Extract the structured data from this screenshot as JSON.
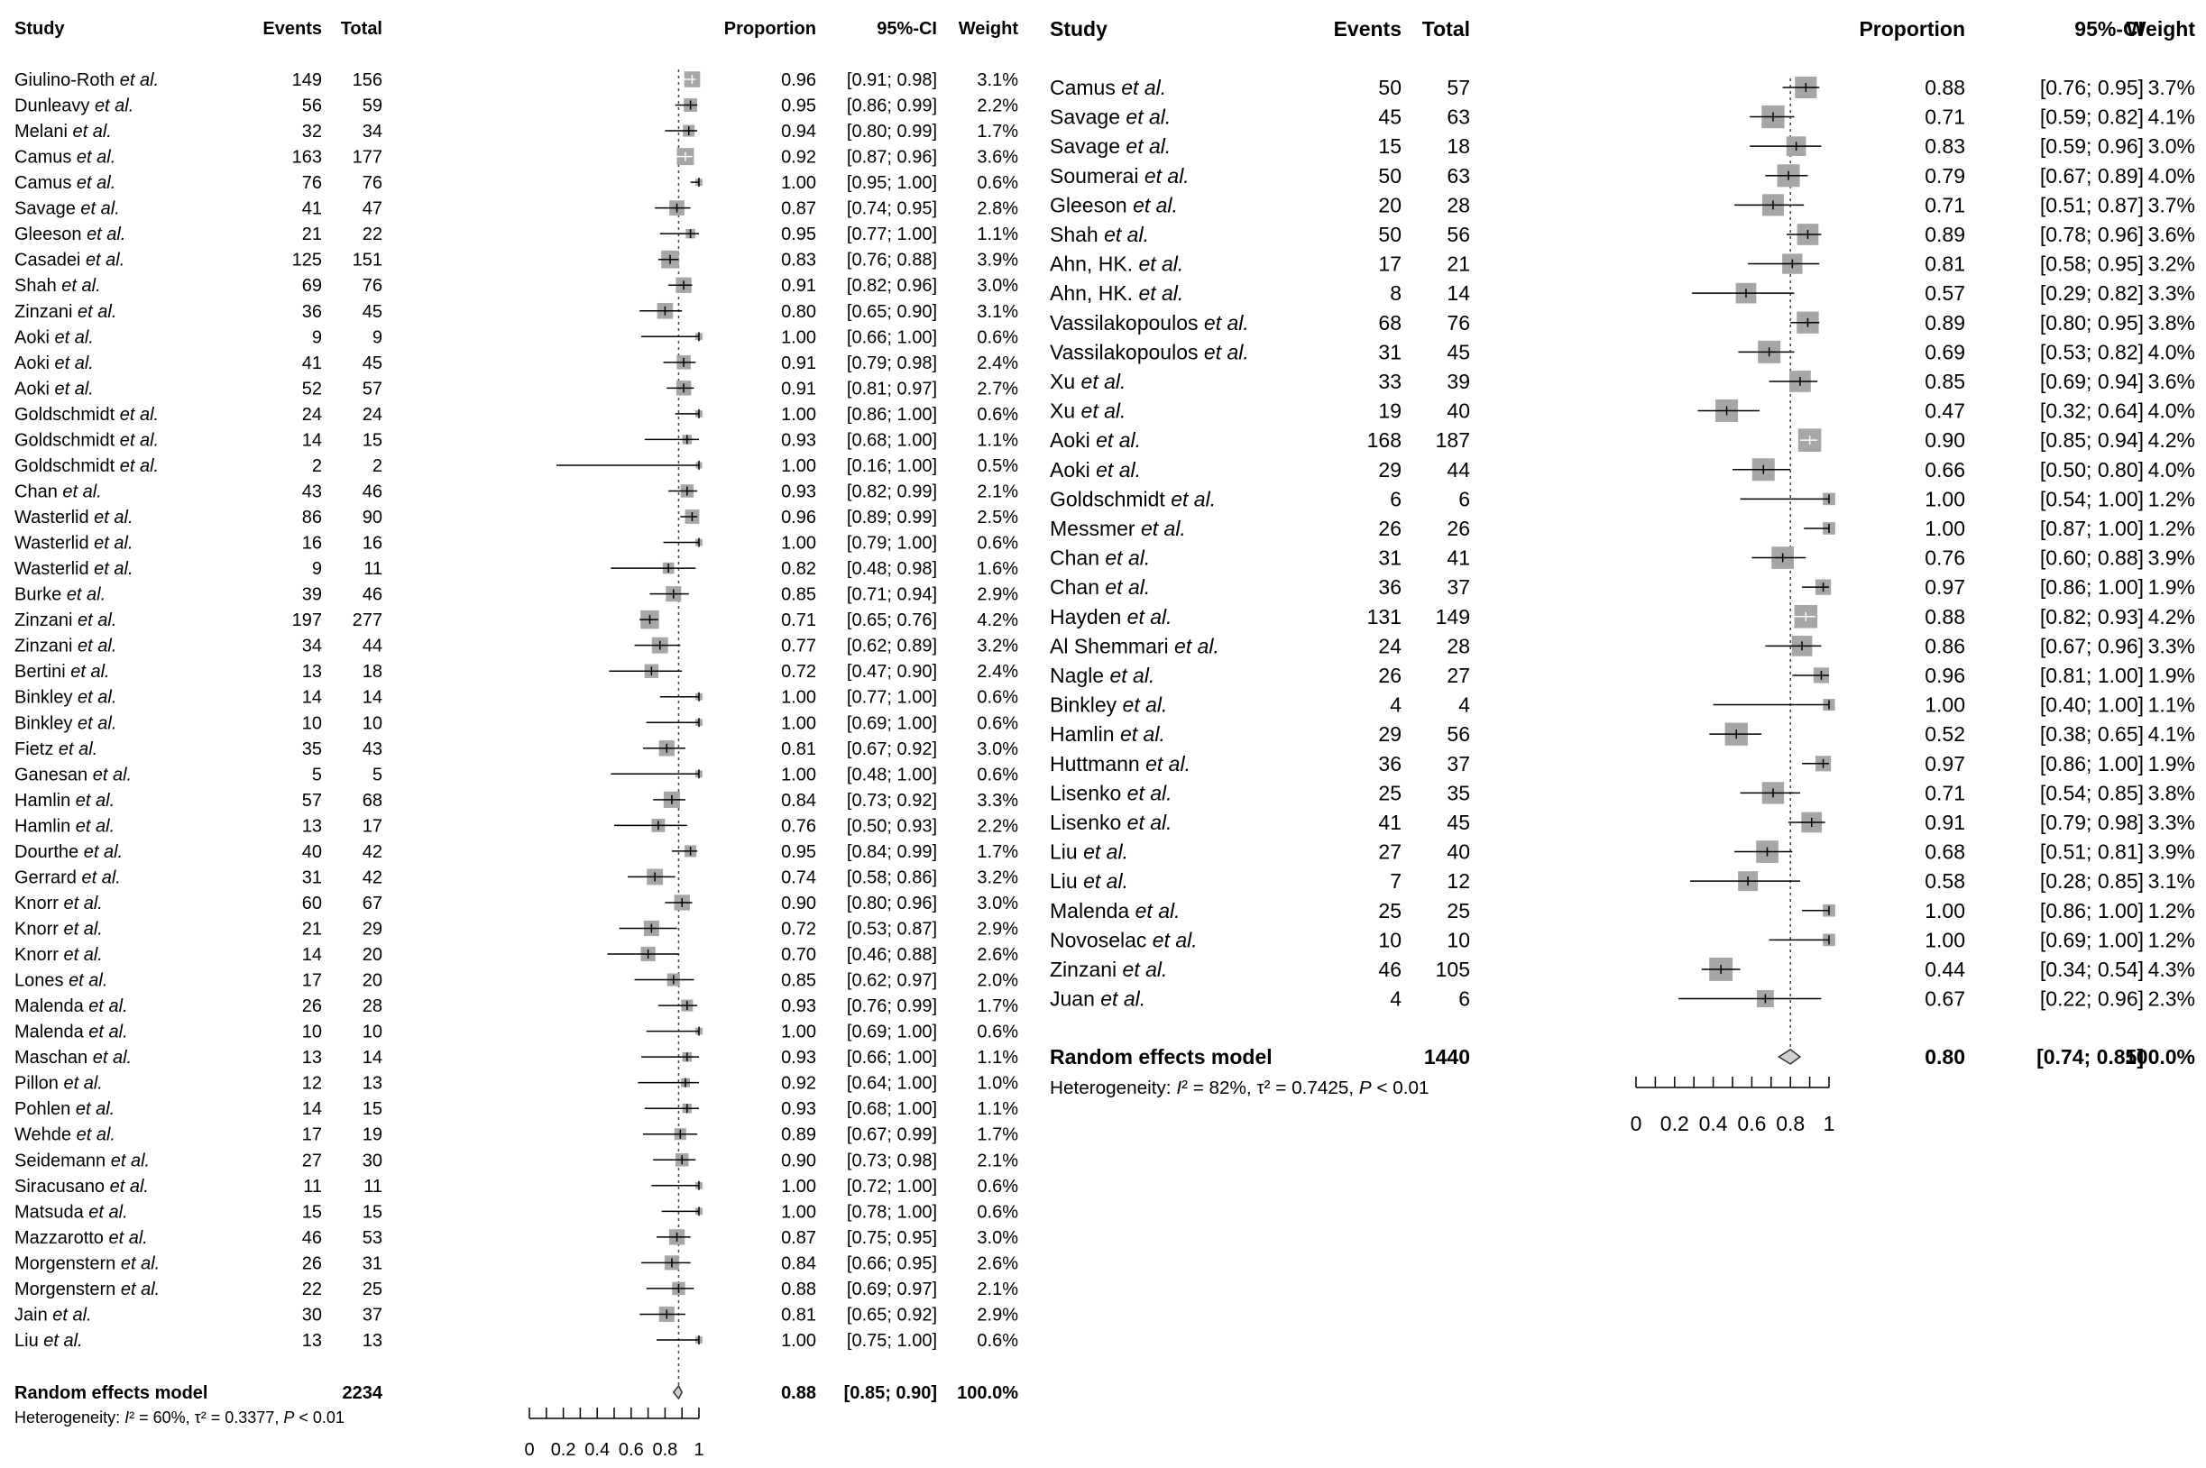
{
  "chart_data": [
    {
      "type": "forest",
      "headers": {
        "study": "Study",
        "events": "Events",
        "total": "Total",
        "proportion": "Proportion",
        "ci": "95%-CI",
        "weight": "Weight"
      },
      "etal": "et al.",
      "xlim": [
        0,
        1
      ],
      "xticks": [
        "0",
        "0.2",
        "0.4",
        "0.6",
        "0.8",
        "1"
      ],
      "studies": [
        [
          "Giulino-Roth",
          149,
          156,
          "0.96",
          "[0.91; 0.98]",
          "3.1%"
        ],
        [
          "Dunleavy",
          56,
          59,
          "0.95",
          "[0.86; 0.99]",
          "2.2%"
        ],
        [
          "Melani",
          32,
          34,
          "0.94",
          "[0.80; 0.99]",
          "1.7%"
        ],
        [
          "Camus",
          163,
          177,
          "0.92",
          "[0.87; 0.96]",
          "3.6%"
        ],
        [
          "Camus",
          76,
          76,
          "1.00",
          "[0.95; 1.00]",
          "0.6%"
        ],
        [
          "Savage",
          41,
          47,
          "0.87",
          "[0.74; 0.95]",
          "2.8%"
        ],
        [
          "Gleeson",
          21,
          22,
          "0.95",
          "[0.77; 1.00]",
          "1.1%"
        ],
        [
          "Casadei",
          125,
          151,
          "0.83",
          "[0.76; 0.88]",
          "3.9%"
        ],
        [
          "Shah",
          69,
          76,
          "0.91",
          "[0.82; 0.96]",
          "3.0%"
        ],
        [
          "Zinzani",
          36,
          45,
          "0.80",
          "[0.65; 0.90]",
          "3.1%"
        ],
        [
          "Aoki",
          9,
          9,
          "1.00",
          "[0.66; 1.00]",
          "0.6%"
        ],
        [
          "Aoki",
          41,
          45,
          "0.91",
          "[0.79; 0.98]",
          "2.4%"
        ],
        [
          "Aoki",
          52,
          57,
          "0.91",
          "[0.81; 0.97]",
          "2.7%"
        ],
        [
          "Goldschmidt",
          24,
          24,
          "1.00",
          "[0.86; 1.00]",
          "0.6%"
        ],
        [
          "Goldschmidt",
          14,
          15,
          "0.93",
          "[0.68; 1.00]",
          "1.1%"
        ],
        [
          "Goldschmidt",
          2,
          2,
          "1.00",
          "[0.16; 1.00]",
          "0.5%"
        ],
        [
          "Chan",
          43,
          46,
          "0.93",
          "[0.82; 0.99]",
          "2.1%"
        ],
        [
          "Wasterlid",
          86,
          90,
          "0.96",
          "[0.89; 0.99]",
          "2.5%"
        ],
        [
          "Wasterlid",
          16,
          16,
          "1.00",
          "[0.79; 1.00]",
          "0.6%"
        ],
        [
          "Wasterlid",
          9,
          11,
          "0.82",
          "[0.48; 0.98]",
          "1.6%"
        ],
        [
          "Burke",
          39,
          46,
          "0.85",
          "[0.71; 0.94]",
          "2.9%"
        ],
        [
          "Zinzani",
          197,
          277,
          "0.71",
          "[0.65; 0.76]",
          "4.2%"
        ],
        [
          "Zinzani",
          34,
          44,
          "0.77",
          "[0.62; 0.89]",
          "3.2%"
        ],
        [
          "Bertini",
          13,
          18,
          "0.72",
          "[0.47; 0.90]",
          "2.4%"
        ],
        [
          "Binkley",
          14,
          14,
          "1.00",
          "[0.77; 1.00]",
          "0.6%"
        ],
        [
          "Binkley",
          10,
          10,
          "1.00",
          "[0.69; 1.00]",
          "0.6%"
        ],
        [
          "Fietz",
          35,
          43,
          "0.81",
          "[0.67; 0.92]",
          "3.0%"
        ],
        [
          "Ganesan",
          5,
          5,
          "1.00",
          "[0.48; 1.00]",
          "0.6%"
        ],
        [
          "Hamlin",
          57,
          68,
          "0.84",
          "[0.73; 0.92]",
          "3.3%"
        ],
        [
          "Hamlin",
          13,
          17,
          "0.76",
          "[0.50; 0.93]",
          "2.2%"
        ],
        [
          "Dourthe",
          40,
          42,
          "0.95",
          "[0.84; 0.99]",
          "1.7%"
        ],
        [
          "Gerrard",
          31,
          42,
          "0.74",
          "[0.58; 0.86]",
          "3.2%"
        ],
        [
          "Knorr",
          60,
          67,
          "0.90",
          "[0.80; 0.96]",
          "3.0%"
        ],
        [
          "Knorr",
          21,
          29,
          "0.72",
          "[0.53; 0.87]",
          "2.9%"
        ],
        [
          "Knorr",
          14,
          20,
          "0.70",
          "[0.46; 0.88]",
          "2.6%"
        ],
        [
          "Lones",
          17,
          20,
          "0.85",
          "[0.62; 0.97]",
          "2.0%"
        ],
        [
          "Malenda",
          26,
          28,
          "0.93",
          "[0.76; 0.99]",
          "1.7%"
        ],
        [
          "Malenda",
          10,
          10,
          "1.00",
          "[0.69; 1.00]",
          "0.6%"
        ],
        [
          "Maschan",
          13,
          14,
          "0.93",
          "[0.66; 1.00]",
          "1.1%"
        ],
        [
          "Pillon",
          12,
          13,
          "0.92",
          "[0.64; 1.00]",
          "1.0%"
        ],
        [
          "Pohlen",
          14,
          15,
          "0.93",
          "[0.68; 1.00]",
          "1.1%"
        ],
        [
          "Wehde",
          17,
          19,
          "0.89",
          "[0.67; 0.99]",
          "1.7%"
        ],
        [
          "Seidemann",
          27,
          30,
          "0.90",
          "[0.73; 0.98]",
          "2.1%"
        ],
        [
          "Siracusano",
          11,
          11,
          "1.00",
          "[0.72; 1.00]",
          "0.6%"
        ],
        [
          "Matsuda",
          15,
          15,
          "1.00",
          "[0.78; 1.00]",
          "0.6%"
        ],
        [
          "Mazzarotto",
          46,
          53,
          "0.87",
          "[0.75; 0.95]",
          "3.0%"
        ],
        [
          "Morgenstern",
          26,
          31,
          "0.84",
          "[0.66; 0.95]",
          "2.6%"
        ],
        [
          "Morgenstern",
          22,
          25,
          "0.88",
          "[0.69; 0.97]",
          "2.1%"
        ],
        [
          "Jain",
          30,
          37,
          "0.81",
          "[0.65; 0.92]",
          "2.9%"
        ],
        [
          "Liu",
          13,
          13,
          "1.00",
          "[0.75; 1.00]",
          "0.6%"
        ]
      ],
      "pooled": {
        "label": "Random effects model",
        "total": 2234,
        "proportion": "0.88",
        "ci": "[0.85; 0.90]",
        "weight": "100.0%",
        "lo": 0.85,
        "hi": 0.9
      },
      "heterogeneity": {
        "prefix": "Heterogeneity: ",
        "i2": "I",
        "i2rest": "² = 60%, ",
        "tau": "τ² = 0.3377, ",
        "p": "P",
        "prest": " < 0.01"
      }
    },
    {
      "type": "forest",
      "headers": {
        "study": "Study",
        "events": "Events",
        "total": "Total",
        "proportion": "Proportion",
        "ci": "95%-CI",
        "weight": "Weight"
      },
      "etal": "et al.",
      "xlim": [
        0,
        1
      ],
      "xticks": [
        "0",
        "0.2",
        "0.4",
        "0.6",
        "0.8",
        "1"
      ],
      "studies": [
        [
          "Camus",
          50,
          57,
          "0.88",
          "[0.76; 0.95]",
          "3.7%"
        ],
        [
          "Savage",
          45,
          63,
          "0.71",
          "[0.59; 0.82]",
          "4.1%"
        ],
        [
          "Savage",
          15,
          18,
          "0.83",
          "[0.59; 0.96]",
          "3.0%"
        ],
        [
          "Soumerai",
          50,
          63,
          "0.79",
          "[0.67; 0.89]",
          "4.0%"
        ],
        [
          "Gleeson",
          20,
          28,
          "0.71",
          "[0.51; 0.87]",
          "3.7%"
        ],
        [
          "Shah",
          50,
          56,
          "0.89",
          "[0.78; 0.96]",
          "3.6%"
        ],
        [
          "Ahn, HK.",
          17,
          21,
          "0.81",
          "[0.58; 0.95]",
          "3.2%"
        ],
        [
          "Ahn, HK.",
          8,
          14,
          "0.57",
          "[0.29; 0.82]",
          "3.3%"
        ],
        [
          "Vassilakopoulos",
          68,
          76,
          "0.89",
          "[0.80; 0.95]",
          "3.8%"
        ],
        [
          "Vassilakopoulos",
          31,
          45,
          "0.69",
          "[0.53; 0.82]",
          "4.0%"
        ],
        [
          "Xu",
          33,
          39,
          "0.85",
          "[0.69; 0.94]",
          "3.6%"
        ],
        [
          "Xu",
          19,
          40,
          "0.47",
          "[0.32; 0.64]",
          "4.0%"
        ],
        [
          "Aoki",
          168,
          187,
          "0.90",
          "[0.85; 0.94]",
          "4.2%"
        ],
        [
          "Aoki",
          29,
          44,
          "0.66",
          "[0.50; 0.80]",
          "4.0%"
        ],
        [
          "Goldschmidt",
          6,
          6,
          "1.00",
          "[0.54; 1.00]",
          "1.2%"
        ],
        [
          "Messmer",
          26,
          26,
          "1.00",
          "[0.87; 1.00]",
          "1.2%"
        ],
        [
          "Chan",
          31,
          41,
          "0.76",
          "[0.60; 0.88]",
          "3.9%"
        ],
        [
          "Chan",
          36,
          37,
          "0.97",
          "[0.86; 1.00]",
          "1.9%"
        ],
        [
          "Hayden",
          131,
          149,
          "0.88",
          "[0.82; 0.93]",
          "4.2%"
        ],
        [
          "Al Shemmari",
          24,
          28,
          "0.86",
          "[0.67; 0.96]",
          "3.3%"
        ],
        [
          "Nagle",
          26,
          27,
          "0.96",
          "[0.81; 1.00]",
          "1.9%"
        ],
        [
          "Binkley",
          4,
          4,
          "1.00",
          "[0.40; 1.00]",
          "1.1%"
        ],
        [
          "Hamlin",
          29,
          56,
          "0.52",
          "[0.38; 0.65]",
          "4.1%"
        ],
        [
          "Huttmann",
          36,
          37,
          "0.97",
          "[0.86; 1.00]",
          "1.9%"
        ],
        [
          "Lisenko",
          25,
          35,
          "0.71",
          "[0.54; 0.85]",
          "3.8%"
        ],
        [
          "Lisenko",
          41,
          45,
          "0.91",
          "[0.79; 0.98]",
          "3.3%"
        ],
        [
          "Liu",
          27,
          40,
          "0.68",
          "[0.51; 0.81]",
          "3.9%"
        ],
        [
          "Liu",
          7,
          12,
          "0.58",
          "[0.28; 0.85]",
          "3.1%"
        ],
        [
          "Malenda",
          25,
          25,
          "1.00",
          "[0.86; 1.00]",
          "1.2%"
        ],
        [
          "Novoselac",
          10,
          10,
          "1.00",
          "[0.69; 1.00]",
          "1.2%"
        ],
        [
          "Zinzani",
          46,
          105,
          "0.44",
          "[0.34; 0.54]",
          "4.3%"
        ],
        [
          "Juan",
          4,
          6,
          "0.67",
          "[0.22; 0.96]",
          "2.3%"
        ]
      ],
      "pooled": {
        "label": "Random effects model",
        "total": 1440,
        "proportion": "0.80",
        "ci": "[0.74; 0.85]",
        "weight": "100.0%",
        "lo": 0.74,
        "hi": 0.85
      },
      "heterogeneity": {
        "prefix": "Heterogeneity: ",
        "i2": "I",
        "i2rest": "² = 82%, ",
        "tau": "τ² = 0.7425, ",
        "p": "P",
        "prest": " < 0.01"
      }
    }
  ],
  "colors": {
    "box": "#a6a6a6",
    "line": "#000000"
  }
}
